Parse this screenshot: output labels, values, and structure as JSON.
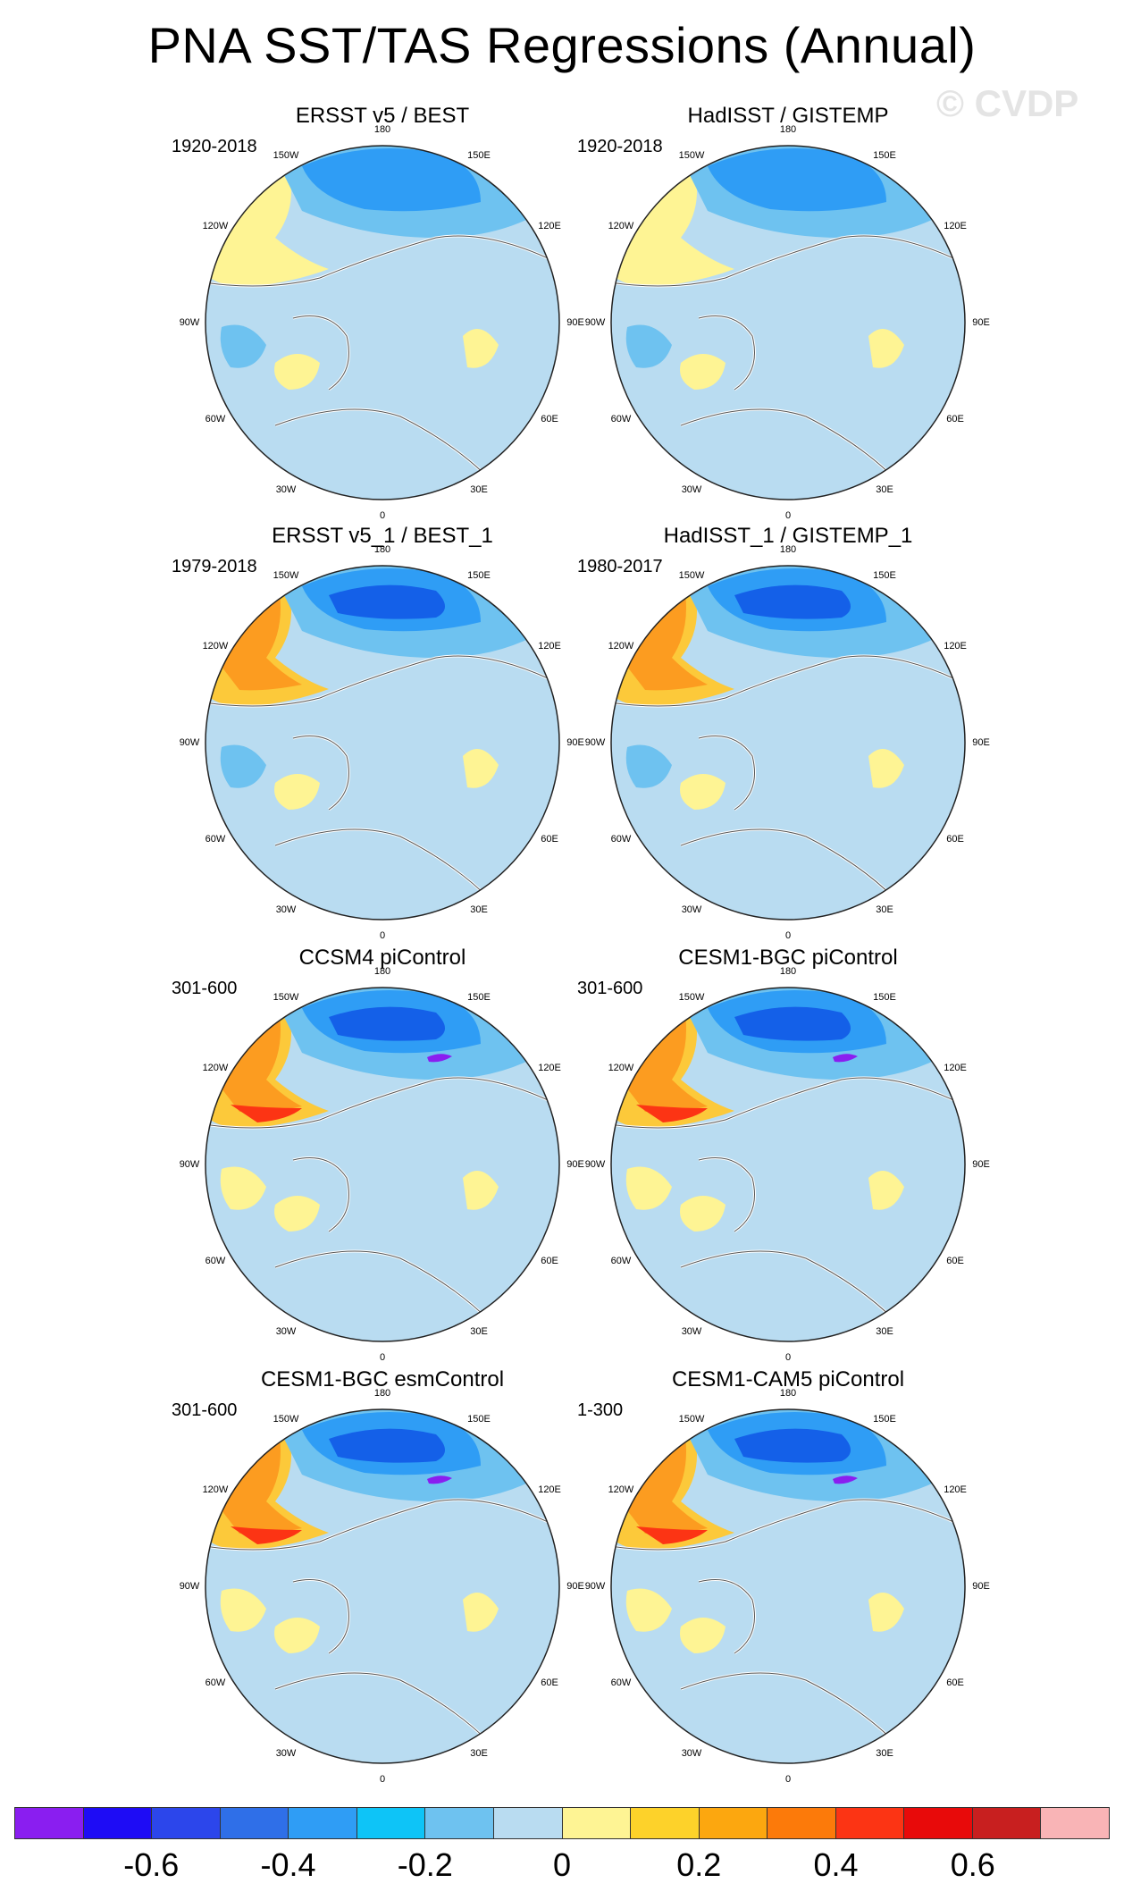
{
  "title": "PNA SST/TAS Regressions (Annual)",
  "watermark": "© CVDP",
  "colors": {
    "ocean_neutral": "#b9dcf1",
    "land_positive": "#fef494",
    "blue_mid": "#6ec2f0",
    "blue_strong": "#2f9df5",
    "blue_deep": "#1460e8",
    "orange_light": "#fcc93a",
    "orange": "#fc9c20",
    "red": "#fc3414",
    "purple": "#8a1ef0"
  },
  "map_labels": {
    "top": "180",
    "upper_left": "150W",
    "upper_right": "150E",
    "mid_left_up": "120W",
    "mid_right_up": "120E",
    "left": "90W",
    "right": "90E",
    "mid_left_down": "60W",
    "mid_right_down": "60E",
    "lower_left": "30W",
    "lower_right": "30E",
    "bottom": "0"
  },
  "panels": [
    {
      "title": "ERSST v5 / BEST",
      "period": "1920-2018",
      "intensity": 0
    },
    {
      "title": "HadISST / GISTEMP",
      "period": "1920-2018",
      "intensity": 0
    },
    {
      "title": "ERSST v5_1 / BEST_1",
      "period": "1979-2018",
      "intensity": 1
    },
    {
      "title": "HadISST_1 / GISTEMP_1",
      "period": "1980-2017",
      "intensity": 1
    },
    {
      "title": "CCSM4 piControl",
      "period": "301-600",
      "intensity": 2
    },
    {
      "title": "CESM1-BGC piControl",
      "period": "301-600",
      "intensity": 2
    },
    {
      "title": "CESM1-BGC esmControl",
      "period": "301-600",
      "intensity": 2
    },
    {
      "title": "CESM1-CAM5 piControl",
      "period": "1-300",
      "intensity": 2
    }
  ],
  "colorbar": {
    "colors": [
      "#8a1ef0",
      "#1e0cf5",
      "#2c46eb",
      "#2f6fe8",
      "#2f9df5",
      "#0ec4f7",
      "#6ec2f0",
      "#b9dcf1",
      "#fef494",
      "#fdd22a",
      "#fca70f",
      "#fc7a0a",
      "#fc3414",
      "#e80a0a",
      "#c81f1f",
      "#f9b4b6"
    ],
    "tick_labels": [
      "-0.6",
      "-0.4",
      "-0.2",
      "0",
      "0.2",
      "0.4",
      "0.6"
    ]
  }
}
